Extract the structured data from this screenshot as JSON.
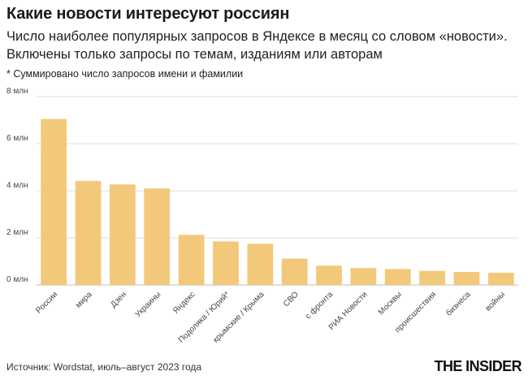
{
  "header": {
    "title": "Какие новости интересуют россиян",
    "subtitle": "Число наиболее популярных запросов в Яндексе в месяц со словом «новости». Включены только запросы по темам, изданиям или авторам",
    "note": "* Суммировано число запросов имени и фамилии"
  },
  "footer": {
    "source": "Источник: Wordstat, июль–август 2023 года",
    "logo": "THE INSIDER"
  },
  "colors": {
    "bar": "#f2c97a",
    "grid": "#dcdcdc",
    "axis": "#bdbdbd"
  },
  "chart_data": {
    "type": "bar",
    "categories": [
      "России",
      "мира",
      "Дзен",
      "Украины",
      "Яндекс",
      "Подоляка / Юрий*",
      "крымские / Крыма",
      "СВО",
      "с фронта",
      "РИА Новости",
      "Москвы",
      "происшествия",
      "бизнеса",
      "войны"
    ],
    "values": [
      7.05,
      4.42,
      4.27,
      4.1,
      2.13,
      1.85,
      1.75,
      1.12,
      0.82,
      0.72,
      0.68,
      0.6,
      0.55,
      0.52
    ],
    "yticks": [
      "0 млн",
      "2 млн",
      "4 млн",
      "6 млн",
      "8 млн"
    ],
    "ylim": [
      0,
      8
    ],
    "grid": true,
    "legend": "none"
  }
}
